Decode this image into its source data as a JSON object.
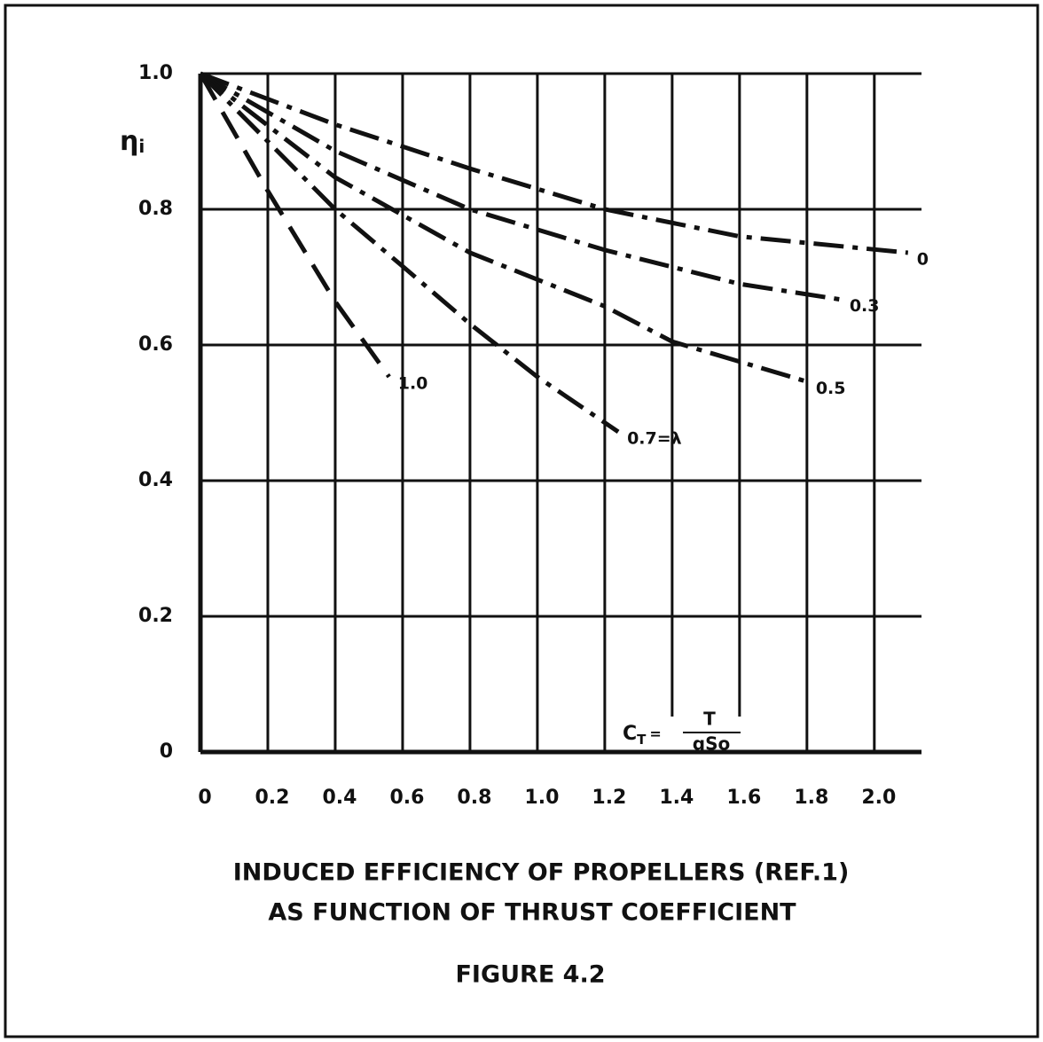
{
  "chart_data": {
    "type": "line",
    "title_lines": [
      "INDUCED EFFICIENCY OF PROPELLERS (REF.1)",
      "AS FUNCTION OF THRUST COEFFICIENT"
    ],
    "figure_label": "FIGURE 4.2",
    "ylabel": {
      "symbol": "η",
      "subscript": "i"
    },
    "xlabel": {
      "symbol": "C",
      "subscript": "T",
      "equals": "=",
      "numerator": "T",
      "denominator": "qSo"
    },
    "xlim": [
      0,
      2.14
    ],
    "ylim": [
      0,
      1
    ],
    "xticks": [
      0,
      0.2,
      0.4,
      0.6,
      0.8,
      {
        "value": 1,
        "label": "1.0"
      },
      1.2,
      1.4,
      1.6,
      1.8,
      {
        "value": 2,
        "label": "2.0"
      }
    ],
    "yticks": [
      0,
      0.2,
      0.4,
      0.6,
      0.8,
      {
        "value": 1,
        "label": "1.0"
      }
    ],
    "grid": true,
    "color": "#111111",
    "series": [
      {
        "name": "0",
        "style": "dash-dot",
        "x": [
          0,
          0.4,
          0.8,
          1.2,
          1.6,
          2.1
        ],
        "values": [
          1,
          0.925,
          0.86,
          0.8,
          0.76,
          0.736
        ]
      },
      {
        "name": "0.3",
        "style": "dash-dot",
        "x": [
          0,
          0.4,
          0.8,
          1.2,
          1.6,
          1.9
        ],
        "values": [
          1,
          0.886,
          0.8,
          0.74,
          0.69,
          0.667
        ]
      },
      {
        "name": "0.5",
        "style": "dash-dot",
        "x": [
          0,
          0.4,
          0.8,
          1.2,
          1.4,
          1.8
        ],
        "values": [
          1,
          0.847,
          0.736,
          0.657,
          0.605,
          0.546
        ]
      },
      {
        "name": "0.7=λ",
        "style": "dash-dot",
        "x": [
          0,
          0.2,
          0.4,
          0.6,
          0.8,
          1.0,
          1.24
        ],
        "values": [
          1,
          0.9,
          0.8,
          0.716,
          0.631,
          0.553,
          0.472
        ]
      },
      {
        "name": "1.0",
        "style": "dash",
        "x": [
          0,
          0.2,
          0.4,
          0.56
        ],
        "values": [
          1,
          0.827,
          0.664,
          0.553
        ]
      }
    ]
  }
}
